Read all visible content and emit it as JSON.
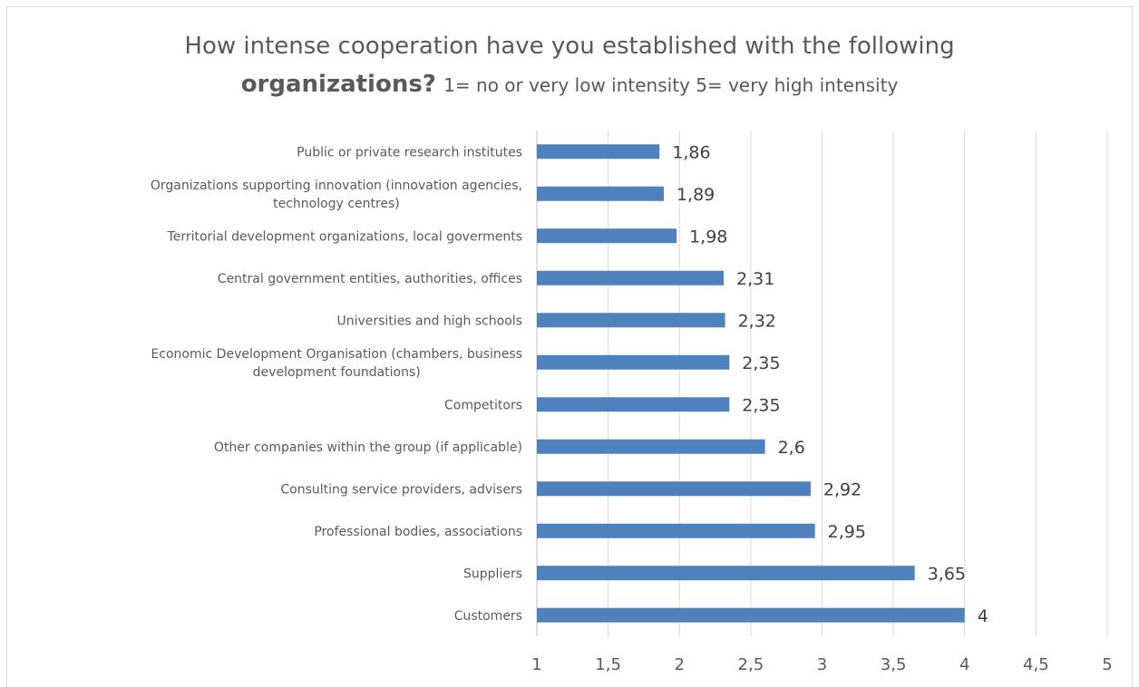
{
  "chart_data": {
    "type": "bar",
    "orientation": "horizontal",
    "title_line1": "How intense cooperation have you established with the following",
    "title_line2_bold": "organizations?",
    "title_line2_note": "1= no or very low  intensity 5= very high intensity",
    "categories": [
      "Public or private research institutes",
      "Organizations supporting innovation (innovation agencies, technology centres)",
      "Territorial development organizations, local goverments",
      "Central government entities, authorities, offices",
      "Universities and high schools",
      "Economic Development Organisation  (chambers, business development foundations)",
      "Competitors",
      "Other companies within the group (if applicable)",
      "Consulting service providers, advisers",
      "Professional bodies, associations",
      "Suppliers",
      "Customers"
    ],
    "values": [
      1.86,
      1.89,
      1.98,
      2.31,
      2.32,
      2.35,
      2.35,
      2.6,
      2.92,
      2.95,
      3.65,
      4
    ],
    "value_labels": [
      "1,86",
      "1,89",
      "1,98",
      "2,31",
      "2,32",
      "2,35",
      "2,35",
      "2,6",
      "2,92",
      "2,95",
      "3,65",
      "4"
    ],
    "xlim": [
      1,
      5
    ],
    "xticks": [
      1,
      1.5,
      2,
      2.5,
      3,
      3.5,
      4,
      4.5,
      5
    ],
    "xtick_labels": [
      "1",
      "1,5",
      "2",
      "2,5",
      "3",
      "3,5",
      "4",
      "4,5",
      "5"
    ],
    "grid": true,
    "bar_color": "#4f81bd",
    "grid_color": "#d9d9d9"
  }
}
